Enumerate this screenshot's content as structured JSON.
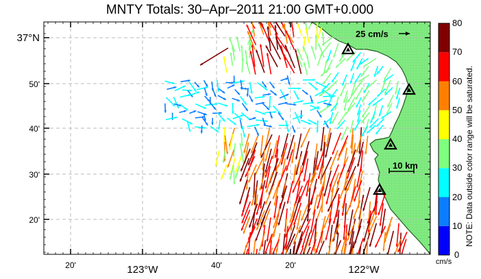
{
  "title": "MNTY Totals: 30–Apr–2011 21:00 GMT+0.000",
  "axes": {
    "x_labels": [
      "20'",
      "123°W",
      "40'",
      "20'",
      "122°W"
    ],
    "y_labels": [
      "37°N",
      "50'",
      "40'",
      "30'",
      "20'"
    ]
  },
  "legend_vector": {
    "label": "25 cm/s"
  },
  "scale_bar": {
    "label": "10 km"
  },
  "colorbar": {
    "unit": "cm/s",
    "note": "NOTE: Data outside color range will be saturated.",
    "ticks": [
      "0",
      "10",
      "20",
      "30",
      "40",
      "50",
      "60",
      "70",
      "80"
    ],
    "colors": [
      "#0000ff",
      "#0b7dff",
      "#00ffff",
      "#7fff7f",
      "#ffff00",
      "#ff8000",
      "#ff0000",
      "#800000"
    ]
  },
  "colors": {
    "land": "#7de87d",
    "coast": "#1c5c1c",
    "grid": "#b9b9b9"
  },
  "station_markers": [
    "triangle-icon",
    "triangle-icon",
    "triangle-icon",
    "triangle-icon"
  ]
}
